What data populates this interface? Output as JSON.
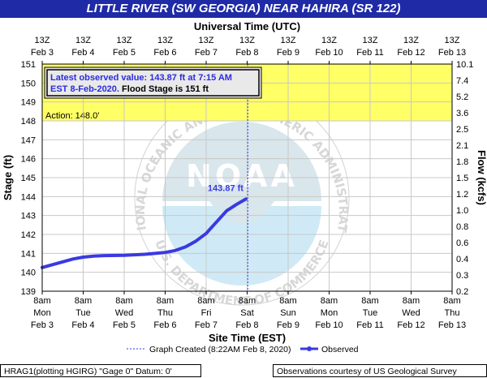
{
  "title": "LITTLE RIVER (SW GEORGIA) NEAR HAHIRA (SR 122)",
  "top_axis_title": "Universal Time (UTC)",
  "bottom_axis_title": "Site Time (EST)",
  "left_axis_title": "Stage (ft)",
  "right_axis_title": "Flow (kcfs)",
  "top_ticks": [
    {
      "time": "13Z",
      "date": "Feb 3"
    },
    {
      "time": "13Z",
      "date": "Feb 4"
    },
    {
      "time": "13Z",
      "date": "Feb 5"
    },
    {
      "time": "13Z",
      "date": "Feb 6"
    },
    {
      "time": "13Z",
      "date": "Feb 7"
    },
    {
      "time": "13Z",
      "date": "Feb 8"
    },
    {
      "time": "13Z",
      "date": "Feb 9"
    },
    {
      "time": "13Z",
      "date": "Feb 10"
    },
    {
      "time": "13Z",
      "date": "Feb 11"
    },
    {
      "time": "13Z",
      "date": "Feb 12"
    },
    {
      "time": "13Z",
      "date": "Feb 13"
    }
  ],
  "bottom_ticks": [
    {
      "time": "8am",
      "day": "Mon",
      "date": "Feb 3"
    },
    {
      "time": "8am",
      "day": "Tue",
      "date": "Feb 4"
    },
    {
      "time": "8am",
      "day": "Wed",
      "date": "Feb 5"
    },
    {
      "time": "8am",
      "day": "Thu",
      "date": "Feb 6"
    },
    {
      "time": "8am",
      "day": "Fri",
      "date": "Feb 7"
    },
    {
      "time": "8am",
      "day": "Sat",
      "date": "Feb 8"
    },
    {
      "time": "8am",
      "day": "Sun",
      "date": "Feb 9"
    },
    {
      "time": "8am",
      "day": "Mon",
      "date": "Feb 10"
    },
    {
      "time": "8am",
      "day": "Tue",
      "date": "Feb 11"
    },
    {
      "time": "8am",
      "day": "Wed",
      "date": "Feb 12"
    },
    {
      "time": "8am",
      "day": "Thu",
      "date": "Feb 13"
    }
  ],
  "left_ticks": [
    "139",
    "140",
    "141",
    "142",
    "143",
    "144",
    "145",
    "146",
    "147",
    "148",
    "149",
    "150",
    "151"
  ],
  "right_ticks": [
    "0.2",
    "0.3",
    "0.4",
    "0.6",
    "0.8",
    "1.0",
    "1.2",
    "1.5",
    "1.8",
    "2.1",
    "2.5",
    "3.6",
    "5.2",
    "7.4",
    "10.1"
  ],
  "info_box": {
    "line1": "Latest observed value: 143.87 ft at 7:15 AM",
    "line2_blue": "EST 8-Feb-2020.",
    "line2_black": " Flood Stage is 151 ft"
  },
  "action_label": "Action: 148.0'",
  "latest_label": "143.87 ft",
  "legend": {
    "graph_created": "Graph Created (8:22AM Feb 8, 2020)",
    "observed": "Observed"
  },
  "footer_left": "HRAG1(plotting HGIRG) \"Gage 0\" Datum: 0'",
  "footer_right": "Observations courtesy of US Geological Survey",
  "watermark": {
    "outer_text": "NATIONAL OCEANIC AND ATMOSPHERIC ADMINISTRATION",
    "inner_text": "NOAA",
    "bottom_text": "U.S. DEPARTMENT OF COMMERCE"
  },
  "colors": {
    "title_bg": "#1f2aa7",
    "observed": "#3a3ae0",
    "action_band": "#ffff66",
    "grid": "#c8c8c8"
  },
  "chart_data": {
    "type": "line",
    "x_axis": "Site Time (EST)",
    "y_axis": "Stage (ft)",
    "y2_axis": "Flow (kcfs)",
    "xlim": [
      "2020-02-03 08:00",
      "2020-02-13 08:00"
    ],
    "ylim": [
      139,
      151
    ],
    "action_stage": 148.0,
    "flood_stage": 151,
    "graph_created": "2020-02-08 08:22",
    "series": [
      {
        "name": "Observed",
        "x": [
          "2020-02-03 08:00",
          "2020-02-03 14:00",
          "2020-02-03 20:00",
          "2020-02-04 02:00",
          "2020-02-04 08:00",
          "2020-02-04 14:00",
          "2020-02-04 20:00",
          "2020-02-05 08:00",
          "2020-02-05 20:00",
          "2020-02-06 08:00",
          "2020-02-06 14:00",
          "2020-02-06 20:00",
          "2020-02-07 02:00",
          "2020-02-07 08:00",
          "2020-02-07 14:00",
          "2020-02-07 20:00",
          "2020-02-08 02:00",
          "2020-02-08 07:15"
        ],
        "y": [
          140.25,
          140.4,
          140.55,
          140.7,
          140.8,
          140.85,
          140.88,
          140.9,
          140.95,
          141.05,
          141.15,
          141.35,
          141.65,
          142.05,
          142.65,
          143.25,
          143.6,
          143.87
        ]
      }
    ]
  }
}
